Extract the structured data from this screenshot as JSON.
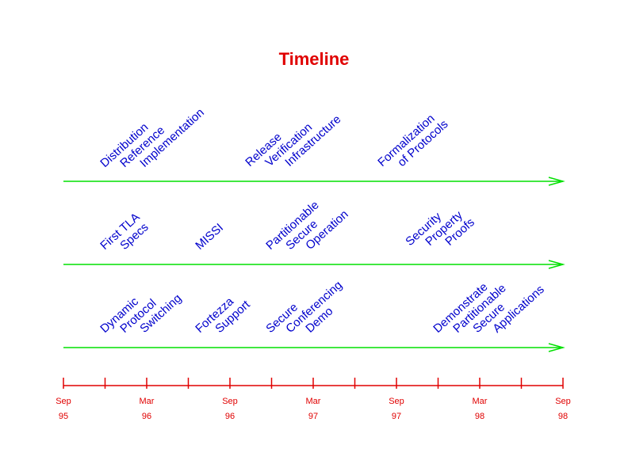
{
  "title": "Timeline",
  "tracks": [
    {
      "events": [
        {
          "lines": [
            "Distribution",
            "Reference",
            "Implementation"
          ]
        },
        {
          "lines": [
            "Release",
            "Verification",
            "Infrastructure"
          ]
        },
        {
          "lines": [
            "Formalization",
            "of Protocols"
          ]
        }
      ]
    },
    {
      "events": [
        {
          "lines": [
            "First TLA",
            "Specs"
          ]
        },
        {
          "lines": [
            "MISSI"
          ]
        },
        {
          "lines": [
            "Partitionable",
            "Secure",
            "Operation"
          ]
        },
        {
          "lines": [
            "Security",
            "Property",
            "Proofs"
          ]
        }
      ]
    },
    {
      "events": [
        {
          "lines": [
            "Dynamic",
            "Protocol",
            "Switching"
          ]
        },
        {
          "lines": [
            "Fortezza",
            "Support"
          ]
        },
        {
          "lines": [
            "Secure",
            "Conferencing",
            "Demo"
          ]
        },
        {
          "lines": [
            "Demonstrate",
            "Partitionable",
            "Secure",
            "Applications"
          ]
        }
      ]
    }
  ],
  "axis": {
    "ticks": [
      {
        "month": "Sep",
        "year": "95"
      },
      {
        "month": "Mar",
        "year": "96"
      },
      {
        "month": "Sep",
        "year": "96"
      },
      {
        "month": "Mar",
        "year": "97"
      },
      {
        "month": "Sep",
        "year": "97"
      },
      {
        "month": "Mar",
        "year": "98"
      },
      {
        "month": "Sep",
        "year": "98"
      }
    ]
  }
}
